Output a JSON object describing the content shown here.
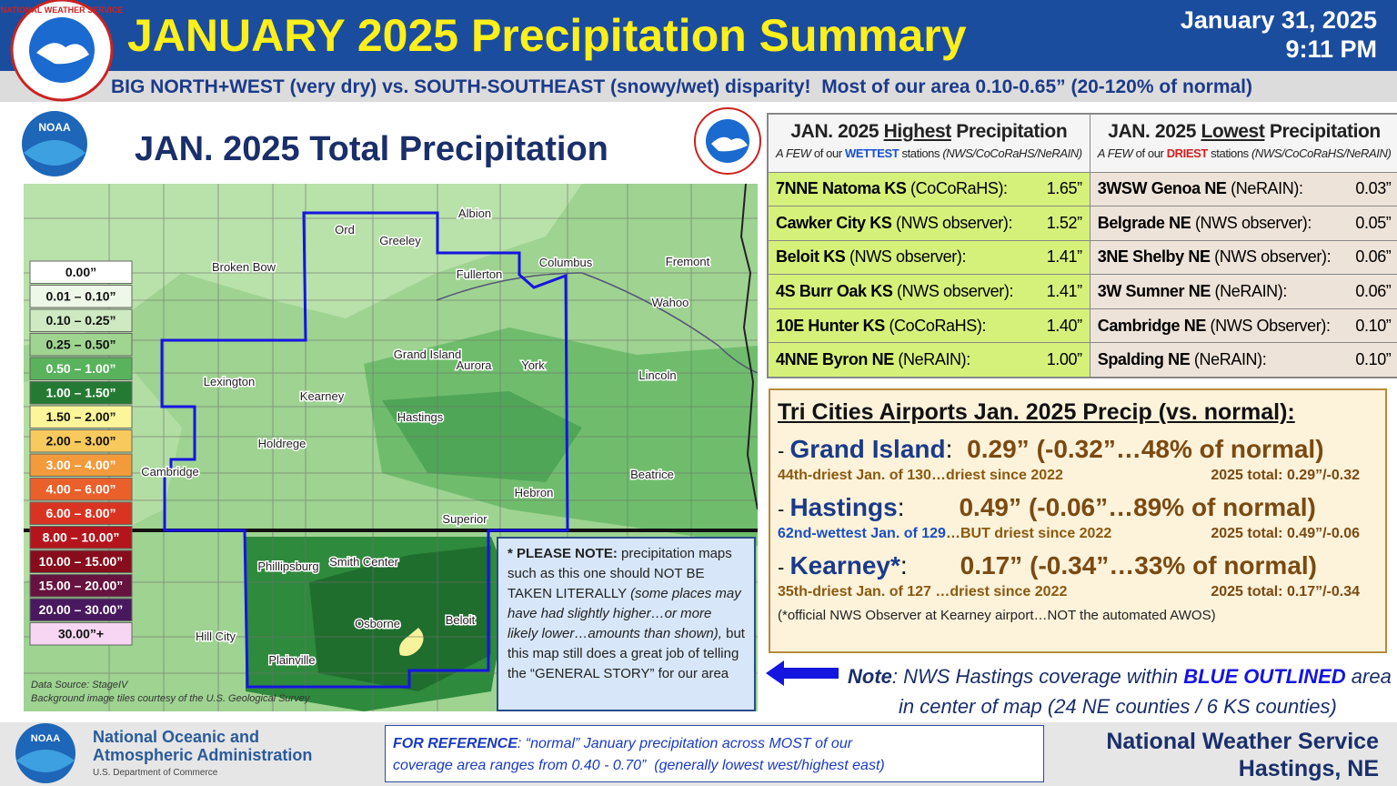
{
  "header": {
    "title": "JANUARY 2025 Precipitation Summary",
    "date": "January 31, 2025",
    "time": "9:11 PM",
    "subtitle": "BIG NORTH+WEST (very dry) vs. SOUTH-SOUTHEAST (snowy/wet) disparity!  Most of our area 0.10-0.65” (20-120% of normal)"
  },
  "logos": {
    "noaa": "NOAA",
    "nws": "NATIONAL WEATHER SERVICE"
  },
  "map": {
    "title": "JAN. 2025 Total Precipitation",
    "legend": [
      {
        "label": "0.00”",
        "color": "#ffffff"
      },
      {
        "label": "0.01 – 0.10”",
        "color": "#eef8e8"
      },
      {
        "label": "0.10 – 0.25”",
        "color": "#cfeac3"
      },
      {
        "label": "0.25 – 0.50”",
        "color": "#9fd590"
      },
      {
        "label": "0.50 – 1.00”",
        "color": "#58b35c"
      },
      {
        "label": "1.00 – 1.50”",
        "color": "#257a33"
      },
      {
        "label": "1.50 – 2.00”",
        "color": "#fdf59a"
      },
      {
        "label": "2.00 – 3.00”",
        "color": "#f8c95c"
      },
      {
        "label": "3.00 – 4.00”",
        "color": "#f39a3b"
      },
      {
        "label": "4.00 – 6.00”",
        "color": "#ea602b"
      },
      {
        "label": "6.00 – 8.00”",
        "color": "#d93422"
      },
      {
        "label": "8.00 – 10.00”",
        "color": "#b4151c"
      },
      {
        "label": "10.00 – 15.00”",
        "color": "#870d1c"
      },
      {
        "label": "15.00 – 20.00”",
        "color": "#671340"
      },
      {
        "label": "20.00 – 30.00”",
        "color": "#48195e"
      },
      {
        "label": "30.00”+",
        "color": "#f6d6f2"
      }
    ],
    "cities": [
      "Ord",
      "Greeley",
      "Albion",
      "Broken Bow",
      "Fullerton",
      "Columbus",
      "Fremont",
      "Wahoo",
      "Grand Island",
      "Aurora",
      "York",
      "Lincoln",
      "Lexington",
      "Kearney",
      "Hastings",
      "Holdrege",
      "Cambridge",
      "Beatrice",
      "Hebron",
      "Superior",
      "Phillipsburg",
      "Smith Center",
      "Osborne",
      "Beloit",
      "Hill City",
      "Plainville"
    ],
    "source": [
      "Data Source: StageIV",
      "Background image tiles courtesy of the U.S. Geological Survey"
    ],
    "note": {
      "lead": "* PLEASE NOTE:",
      "text": " precipitation maps such as this one should NOT BE TAKEN LITERALLY ",
      "italic": "(some places may have had slightly higher…or more likely lower…amounts than shown),",
      "rest": " but this map still does a great job of telling the “GENERAL STORY” for our area"
    }
  },
  "highest": {
    "title_pre": "JAN. 2025 ",
    "title_em": "Highest",
    "title_post": " Precipitation",
    "sub_pre": "A FEW",
    "sub_mid": " of our ",
    "sub_em": "WETTEST",
    "sub_post": " stations ",
    "sub_src": "(NWS/CoCoRaHS/NeRAIN)",
    "rows": [
      [
        "7NNE Natoma KS",
        " (CoCoRaHS):",
        "1.65”"
      ],
      [
        "Cawker City KS",
        " (NWS observer):",
        "1.52”"
      ],
      [
        "Beloit KS",
        " (NWS observer):",
        "1.41”"
      ],
      [
        "4S Burr Oak KS",
        " (NWS observer):",
        "1.41”"
      ],
      [
        "10E Hunter KS",
        " (CoCoRaHS):",
        "1.40”"
      ],
      [
        "4NNE Byron NE",
        " (NeRAIN):",
        "1.00”"
      ]
    ]
  },
  "lowest": {
    "title_pre": "JAN. 2025 ",
    "title_em": "Lowest",
    "title_post": " Precipitation",
    "sub_pre": "A FEW",
    "sub_mid": " of our ",
    "sub_em": "DRIEST",
    "sub_post": " stations ",
    "sub_src": "(NWS/CoCoRaHS/NeRAIN)",
    "rows": [
      [
        "3WSW Genoa NE",
        " (NeRAIN):",
        "0.03”"
      ],
      [
        "Belgrade NE",
        " (NWS observer):",
        "0.05”"
      ],
      [
        "3NE Shelby NE",
        " (NWS observer):",
        "0.06”"
      ],
      [
        "3W Sumner NE",
        " (NeRAIN):",
        "0.06”"
      ],
      [
        "Cambridge NE",
        " (NWS Observer):",
        "0.10”"
      ],
      [
        "Spalding NE",
        " (NeRAIN):",
        "0.10”"
      ]
    ]
  },
  "tri_cities": {
    "title": "Tri Cities Airports Jan. 2025 Precip (vs. normal):",
    "entries": [
      {
        "dash": "- ",
        "name": "Grand Island",
        "sep": ": ",
        "value": "0.29”",
        "anomaly": "(-0.32”…48% of normal)",
        "detail_a": "44th-driest Jan. of 130…driest since 2022",
        "detail_b": "",
        "total": "2025 total: 0.29”/-0.32"
      },
      {
        "dash": "- ",
        "name": "Hastings",
        "sep": ":",
        "value": "0.49”",
        "anomaly": "(-0.06”…89% of normal)",
        "detail_a": "62nd-wettest Jan. of 129",
        "detail_b": "…BUT driest since 2022",
        "total": "2025 total: 0.49”/-0.06"
      },
      {
        "dash": "- ",
        "name": "Kearney*",
        "sep": ":",
        "value": "0.17”",
        "anomaly": "(-0.34”…33% of normal)",
        "detail_a": "35th-driest Jan. of 127 …driest since 2022",
        "detail_b": "",
        "total": "2025 total: 0.17”/-0.34"
      }
    ],
    "footnote": "(*official NWS Observer at Kearney airport…NOT the automated AWOS)"
  },
  "coverage_note": {
    "lead": "Note",
    "pre": ": NWS Hastings coverage within ",
    "em": "BLUE OUTLINED",
    "post": " area",
    "line2": "in center of map (24 NE counties / 6 KS counties)"
  },
  "reference": {
    "lead": "FOR REFERENCE",
    "line1": ": “normal” January precipitation across MOST of our",
    "line2": "coverage area ranges from 0.40 - 0.70”  (generally lowest west/highest east)"
  },
  "footer": {
    "noaa": [
      "National Oceanic and",
      "Atmospheric Administration",
      "U.S. Department of Commerce"
    ],
    "nws": [
      "National Weather Service",
      "Hastings, NE"
    ]
  }
}
